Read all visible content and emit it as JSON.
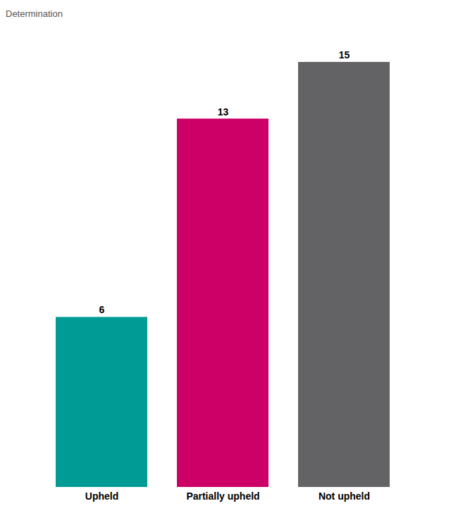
{
  "chart_data": {
    "type": "bar",
    "title": "Determination",
    "categories": [
      "Upheld",
      "Partially upheld",
      "Not upheld"
    ],
    "values": [
      6,
      13,
      15
    ],
    "colors": [
      "#009b95",
      "#cc0066",
      "#636366"
    ],
    "ylim": [
      0,
      15
    ],
    "data_labels": true,
    "tick_labels": "x"
  }
}
